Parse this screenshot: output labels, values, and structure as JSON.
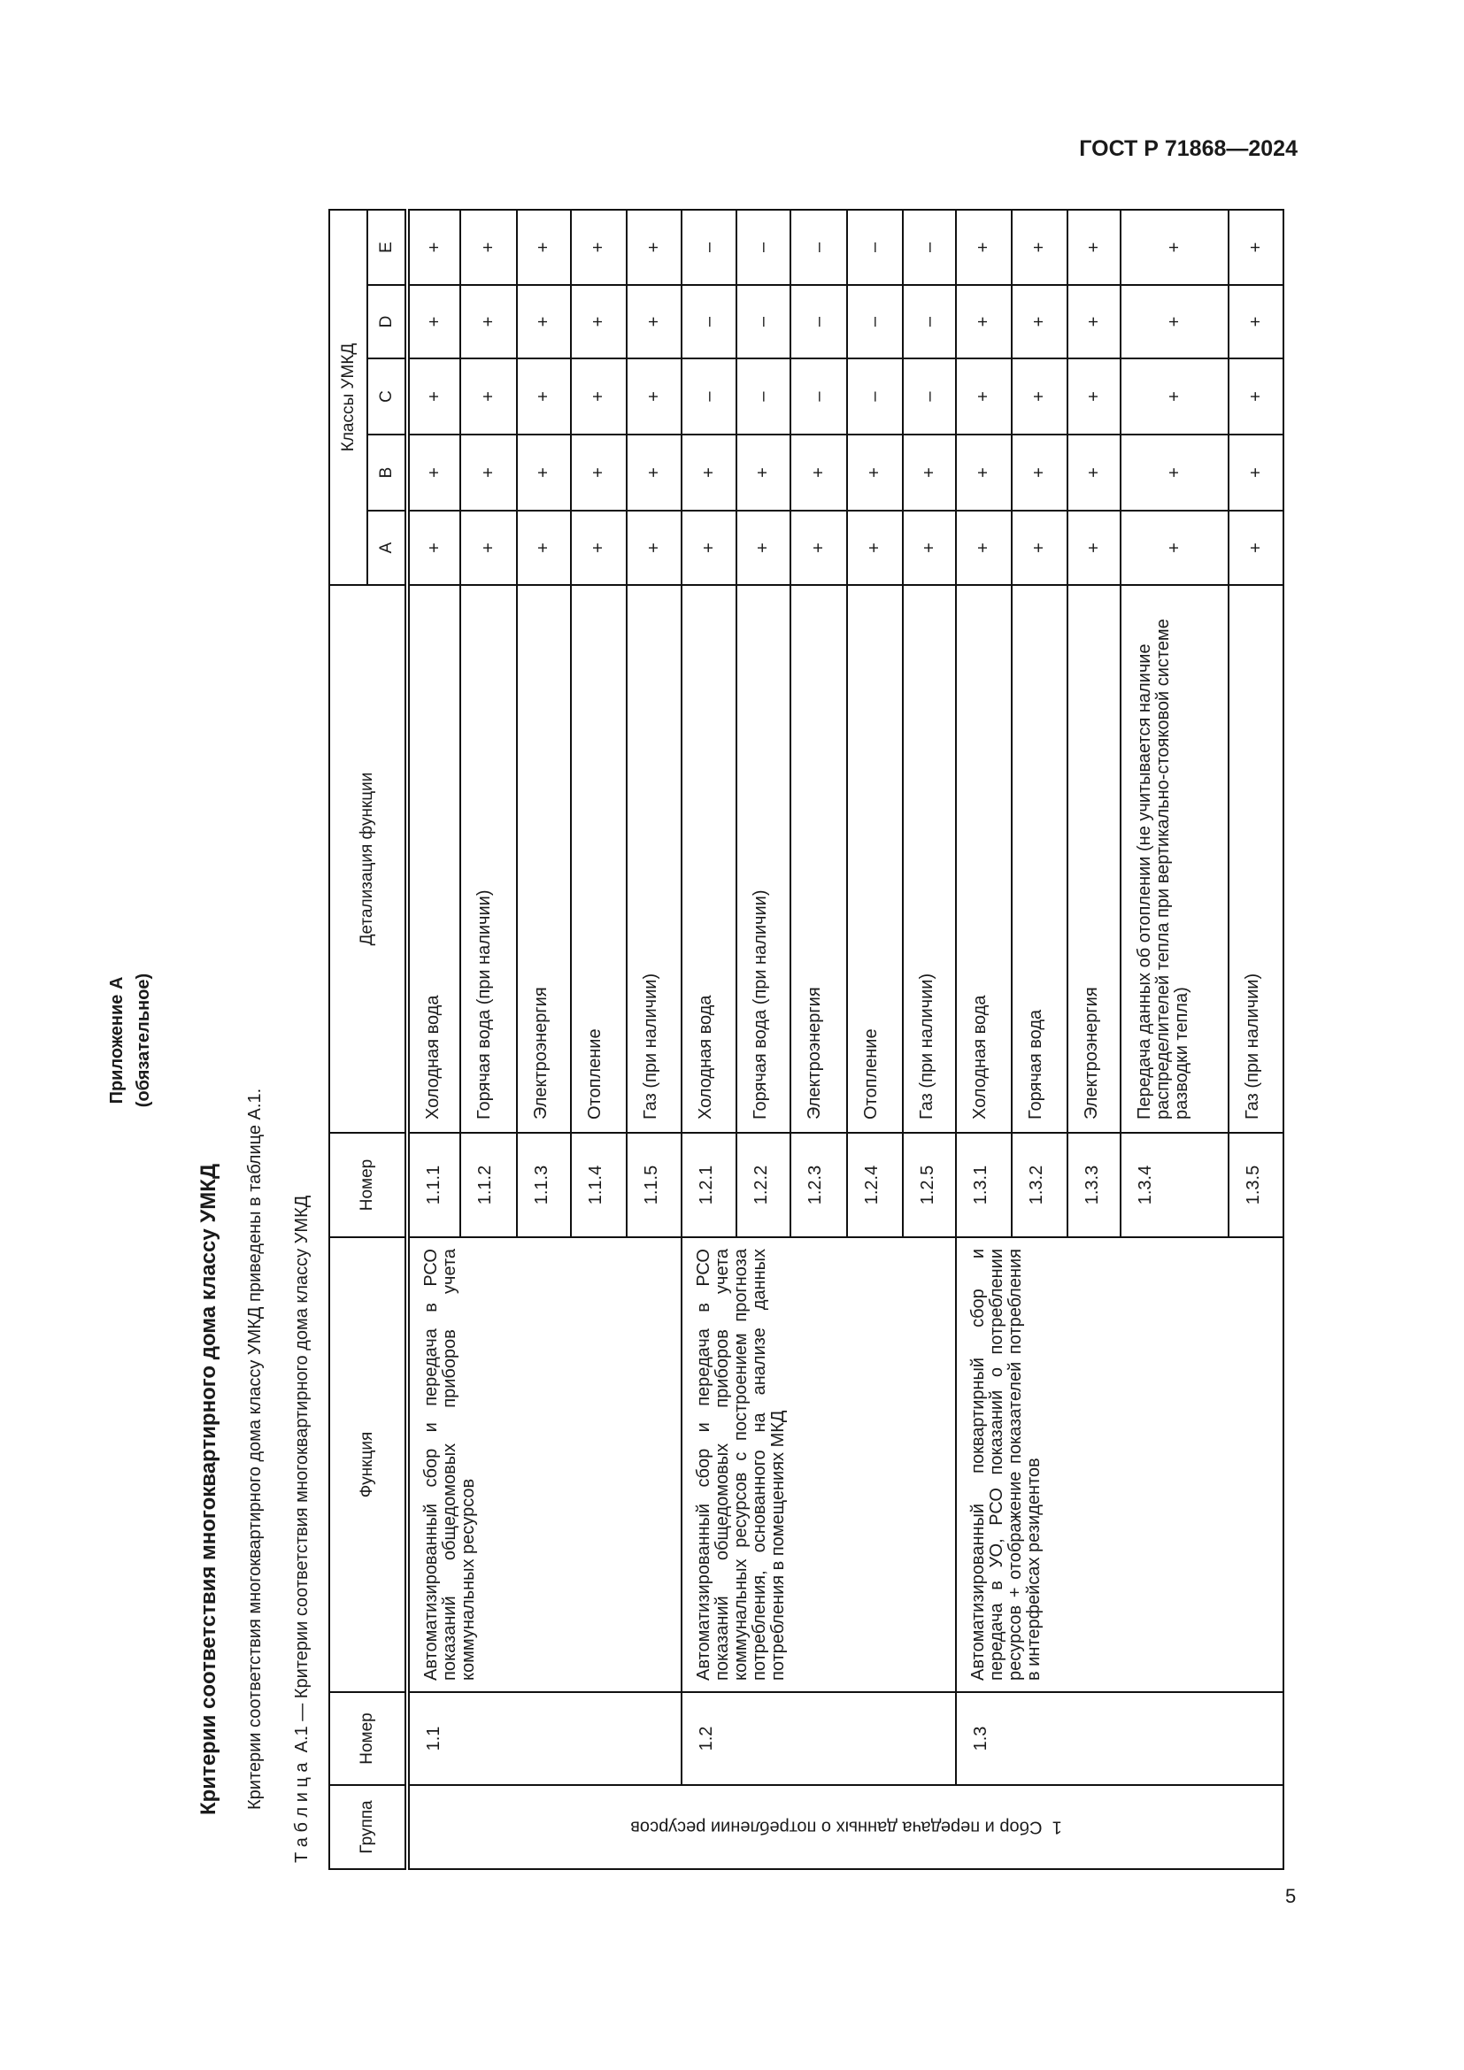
{
  "header": {
    "doc_code": "ГОСТ Р 71868—2024"
  },
  "annex": {
    "title": "Приложение А",
    "status": "(обязательное)"
  },
  "section_title": "Критерии соответствия многоквартирного дома классу УМКД",
  "intro_paragraph": "Критерии соответствия многоквартирного дома классу УМКД приведены в таблице А.1.",
  "table_caption": "Т а б л и ц а  А.1 — Критерии соответствия многоквартирного дома классу УМКД",
  "table": {
    "headers": {
      "group": "Группа",
      "number": "Номер",
      "function": "Функция",
      "sub_number": "Номер",
      "detail": "Детализация функции",
      "classes": "Классы УМКД",
      "class_names": [
        "A",
        "B",
        "C",
        "D",
        "E"
      ]
    },
    "group_label": "1  Сбор и передача данных о потреблении ресурсов",
    "functions": [
      {
        "number": "1.1",
        "text": "Автоматизированный сбор и передача в РСО показаний общедомовых приборов учета коммунальных ресурсов",
        "rows": [
          {
            "number": "1.1.1",
            "detail": "Холодная вода",
            "marks": [
              "+",
              "+",
              "+",
              "+",
              "+"
            ]
          },
          {
            "number": "1.1.2",
            "detail": "Горячая вода (при наличии)",
            "marks": [
              "+",
              "+",
              "+",
              "+",
              "+"
            ]
          },
          {
            "number": "1.1.3",
            "detail": "Электроэнергия",
            "marks": [
              "+",
              "+",
              "+",
              "+",
              "+"
            ]
          },
          {
            "number": "1.1.4",
            "detail": "Отопление",
            "marks": [
              "+",
              "+",
              "+",
              "+",
              "+"
            ]
          },
          {
            "number": "1.1.5",
            "detail": "Газ (при наличии)",
            "marks": [
              "+",
              "+",
              "+",
              "+",
              "+"
            ]
          }
        ]
      },
      {
        "number": "1.2",
        "text": "Автоматизированный сбор и передача в РСО показаний общедомовых приборов учета коммунальных ресурсов с построением прогноза потребления, основанного на анализе данных потребления в помещениях МКД",
        "rows": [
          {
            "number": "1.2.1",
            "detail": "Холодная вода",
            "marks": [
              "+",
              "+",
              "–",
              "–",
              "–"
            ]
          },
          {
            "number": "1.2.2",
            "detail": "Горячая вода (при наличии)",
            "marks": [
              "+",
              "+",
              "–",
              "–",
              "–"
            ]
          },
          {
            "number": "1.2.3",
            "detail": "Электроэнергия",
            "marks": [
              "+",
              "+",
              "–",
              "–",
              "–"
            ]
          },
          {
            "number": "1.2.4",
            "detail": "Отопление",
            "marks": [
              "+",
              "+",
              "–",
              "–",
              "–"
            ]
          },
          {
            "number": "1.2.5",
            "detail": "Газ (при наличии)",
            "marks": [
              "+",
              "+",
              "–",
              "–",
              "–"
            ]
          }
        ]
      },
      {
        "number": "1.3",
        "text": "Автоматизированный поквартирный сбор и передача в УО, РСО показаний о потреблении ресурсов + отображение показателей потребления в интерфейсах резидентов",
        "rows": [
          {
            "number": "1.3.1",
            "detail": "Холодная вода",
            "marks": [
              "+",
              "+",
              "+",
              "+",
              "+"
            ]
          },
          {
            "number": "1.3.2",
            "detail": "Горячая вода",
            "marks": [
              "+",
              "+",
              "+",
              "+",
              "+"
            ]
          },
          {
            "number": "1.3.3",
            "detail": "Электроэнергия",
            "marks": [
              "+",
              "+",
              "+",
              "+",
              "+"
            ]
          },
          {
            "number": "1.3.4",
            "detail": "Передача данных об отоплении (не учитывается наличие распределителей тепла при вертикально-стояковой системе разводки тепла)",
            "marks": [
              "+",
              "+",
              "+",
              "+",
              "+"
            ]
          },
          {
            "number": "1.3.5",
            "detail": "Газ (при наличии)",
            "marks": [
              "+",
              "+",
              "+",
              "+",
              "+"
            ]
          }
        ]
      }
    ]
  },
  "page_number": "5"
}
